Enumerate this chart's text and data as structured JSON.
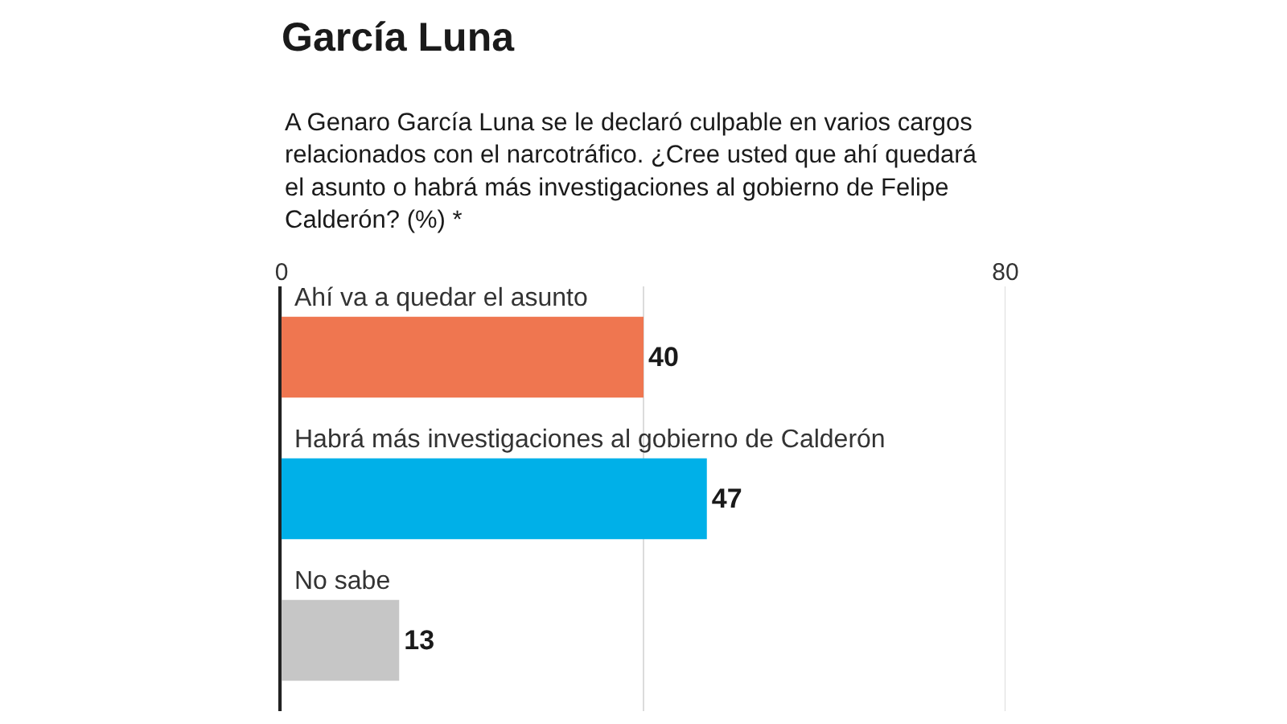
{
  "chart_data": {
    "type": "bar",
    "orientation": "horizontal",
    "title": "García Luna",
    "subtitle": "A Genaro García Luna se le declaró culpable en varios cargos relacionados con el narcotráfico. ¿Cree usted que ahí quedará el asunto o habrá más investigaciones al gobierno de Felipe Calderón? (%) *",
    "categories": [
      "Ahí va a quedar el asunto",
      "Habrá más investigaciones al gobierno de Calderón",
      "No sabe"
    ],
    "values": [
      40,
      47,
      13
    ],
    "colors": [
      "#ef7650",
      "#00b0e8",
      "#c6c6c6"
    ],
    "xlim": [
      0,
      80
    ],
    "xticks": [
      0,
      {
        "value": 40,
        "label": null
      },
      80
    ],
    "grid": "x",
    "tick_labels": "x",
    "data_labels": true,
    "legend": false
  }
}
